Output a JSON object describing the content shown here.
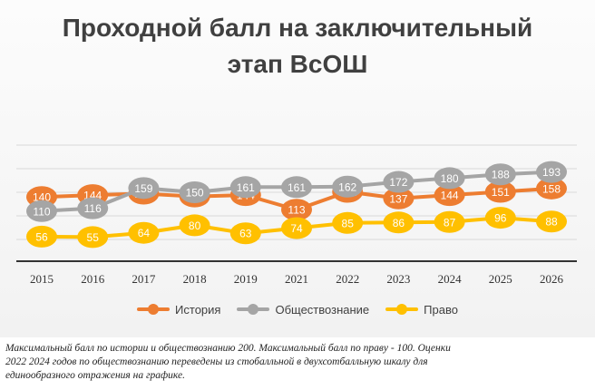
{
  "title": {
    "line1": "Проходной балл на заключительный",
    "line2": "этап ВсОШ"
  },
  "footnote": {
    "line1": "Максимальный балл по истории и обществознанию 200. Максимальный балл по праву - 100. Оценки",
    "line2": "2022 2024 годов по обществознанию переведены из стобалльной в двухсотбалльную шкалу для",
    "line3": "единообразного отражения на графике."
  },
  "chart_data": {
    "type": "line",
    "categories": [
      "2015",
      "2016",
      "2017",
      "2018",
      "2019",
      "2021",
      "2022",
      "2023",
      "2024",
      "2025",
      "2026"
    ],
    "series": [
      {
        "name": "История",
        "color": "#ed7d31",
        "values": [
          140,
          144,
          147,
          141,
          144,
          113,
          151,
          137,
          144,
          151,
          158
        ]
      },
      {
        "name": "Обществознание",
        "color": "#a5a5a5",
        "values": [
          110,
          116,
          159,
          150,
          161,
          161,
          162,
          172,
          180,
          188,
          193
        ]
      },
      {
        "name": "Право",
        "color": "#ffc000",
        "values": [
          56,
          55,
          64,
          80,
          63,
          74,
          85,
          86,
          87,
          96,
          88
        ]
      }
    ],
    "legend_position": "bottom",
    "data_labels": true,
    "grid": true
  }
}
